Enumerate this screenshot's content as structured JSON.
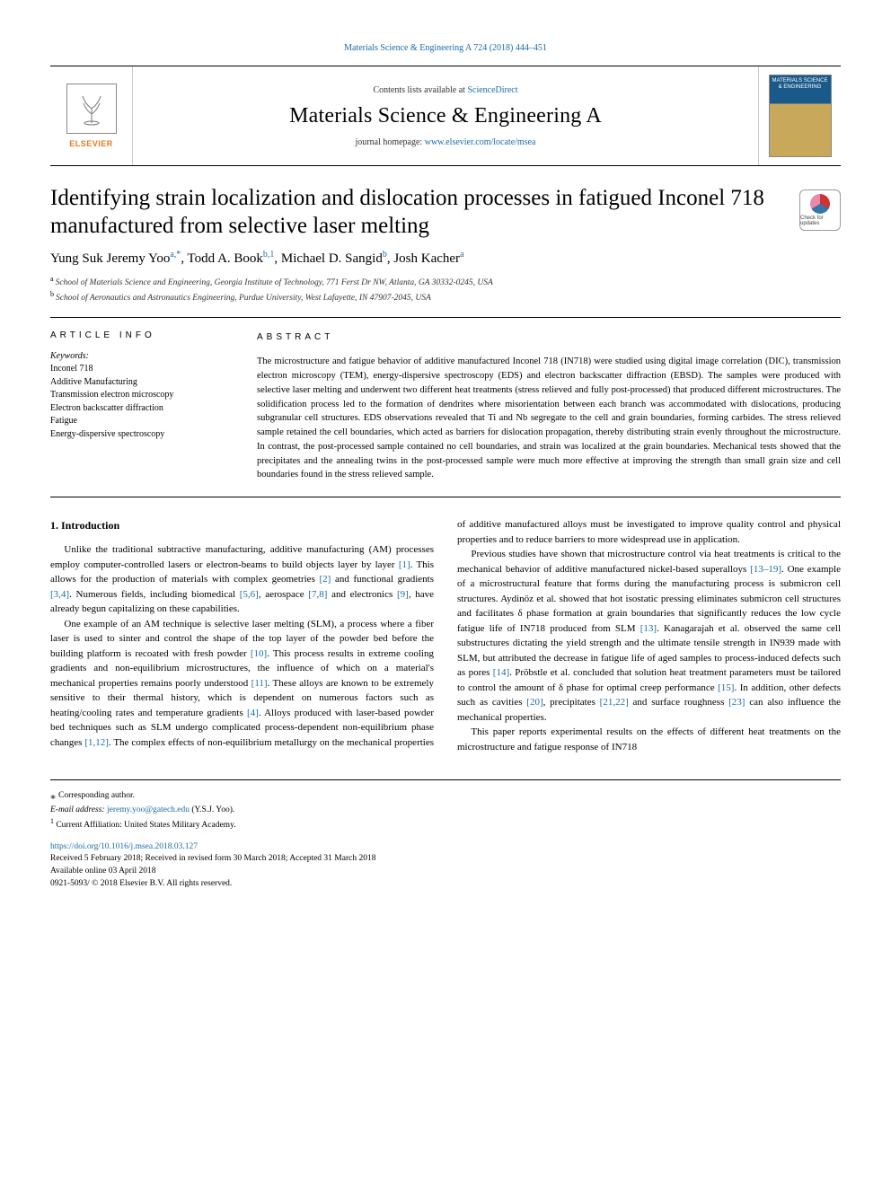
{
  "header": {
    "citation": "Materials Science & Engineering A 724 (2018) 444–451",
    "contents_prefix": "Contents lists available at ",
    "contents_link": "ScienceDirect",
    "journal_title": "Materials Science & Engineering A",
    "homepage_prefix": "journal homepage: ",
    "homepage_url": "www.elsevier.com/locate/msea",
    "publisher_name": "ELSEVIER",
    "cover_text": "MATERIALS SCIENCE & ENGINEERING",
    "check_updates_label": "Check for updates"
  },
  "article": {
    "title": "Identifying strain localization and dislocation processes in fatigued Inconel 718 manufactured from selective laser melting",
    "authors_html": "Yung Suk Jeremy Yoo<sup class='sup'>a,*</sup>, Todd A. Book<sup class='sup'>b,1</sup>, Michael D. Sangid<sup class='sup'>b</sup>, Josh Kacher<sup class='sup'>a</sup>",
    "affiliations": [
      {
        "label": "a",
        "text": "School of Materials Science and Engineering, Georgia Institute of Technology, 771 Ferst Dr NW, Atlanta, GA 30332-0245, USA"
      },
      {
        "label": "b",
        "text": "School of Aeronautics and Astronautics Engineering, Purdue University, West Lafayette, IN 47907-2045, USA"
      }
    ]
  },
  "info": {
    "label": "ARTICLE INFO",
    "keywords_head": "Keywords:",
    "keywords": [
      "Inconel 718",
      "Additive Manufacturing",
      "Transmission electron microscopy",
      "Electron backscatter diffraction",
      "Fatigue",
      "Energy-dispersive spectroscopy"
    ]
  },
  "abstract": {
    "label": "ABSTRACT",
    "text": "The microstructure and fatigue behavior of additive manufactured Inconel 718 (IN718) were studied using digital image correlation (DIC), transmission electron microscopy (TEM), energy-dispersive spectroscopy (EDS) and electron backscatter diffraction (EBSD). The samples were produced with selective laser melting and underwent two different heat treatments (stress relieved and fully post-processed) that produced different microstructures. The solidification process led to the formation of dendrites where misorientation between each branch was accommodated with dislocations, producing subgranular cell structures. EDS observations revealed that Ti and Nb segregate to the cell and grain boundaries, forming carbides. The stress relieved sample retained the cell boundaries, which acted as barriers for dislocation propagation, thereby distributing strain evenly throughout the microstructure. In contrast, the post-processed sample contained no cell boundaries, and strain was localized at the grain boundaries. Mechanical tests showed that the precipitates and the annealing twins in the post-processed sample were much more effective at improving the strength than small grain size and cell boundaries found in the stress relieved sample."
  },
  "body": {
    "heading": "1. Introduction",
    "paragraphs_html": [
      "Unlike the traditional subtractive manufacturing, additive manufacturing (AM) processes employ computer-controlled lasers or electron-beams to build objects layer by layer <span class='ref'>[1]</span>. This allows for the production of materials with complex geometries <span class='ref'>[2]</span> and functional gradients <span class='ref'>[3,4]</span>. Numerous fields, including biomedical <span class='ref'>[5,6]</span>, aerospace <span class='ref'>[7,8]</span> and electronics <span class='ref'>[9]</span>, have already begun capitalizing on these capabilities.",
      "One example of an AM technique is selective laser melting (SLM), a process where a fiber laser is used to sinter and control the shape of the top layer of the powder bed before the building platform is recoated with fresh powder <span class='ref'>[10]</span>. This process results in extreme cooling gradients and non-equilibrium microstructures, the influence of which on a material's mechanical properties remains poorly understood <span class='ref'>[11]</span>. These alloys are known to be extremely sensitive to their thermal history, which is dependent on numerous factors such as heating/cooling rates and temperature gradients <span class='ref'>[4]</span>. Alloys produced with laser-based powder bed techniques such as SLM undergo complicated process-dependent non-equilibrium phase changes <span class='ref'>[1,12]</span>. The complex effects of non-equilibrium metallurgy on the mechanical properties of additive manufactured alloys must be investigated to improve quality control and physical properties and to reduce barriers to more widespread use in application.",
      "Previous studies have shown that microstructure control via heat treatments is critical to the mechanical behavior of additive manufactured nickel-based superalloys <span class='ref'>[13–19]</span>. One example of a microstructural feature that forms during the manufacturing process is submicron cell structures. Aydinöz et al. showed that hot isostatic pressing eliminates submicron cell structures and facilitates δ phase formation at grain boundaries that significantly reduces the low cycle fatigue life of IN718 produced from SLM <span class='ref'>[13]</span>. Kanagarajah et al. observed the same cell substructures dictating the yield strength and the ultimate tensile strength in IN939 made with SLM, but attributed the decrease in fatigue life of aged samples to process-induced defects such as pores <span class='ref'>[14]</span>. Pröbstle et al. concluded that solution heat treatment parameters must be tailored to control the amount of δ phase for optimal creep performance <span class='ref'>[15]</span>. In addition, other defects such as cavities <span class='ref'>[20]</span>, precipitates <span class='ref'>[21,22]</span> and surface roughness <span class='ref'>[23]</span> can also influence the mechanical properties.",
      "This paper reports experimental results on the effects of different heat treatments on the microstructure and fatigue response of IN718"
    ]
  },
  "footer": {
    "corr": "Corresponding author.",
    "email_label": "E-mail address: ",
    "email": "jeremy.yoo@gatech.edu",
    "email_paren": " (Y.S.J. Yoo).",
    "note1": "Current Affiliation: United States Military Academy.",
    "doi": "https://doi.org/10.1016/j.msea.2018.03.127",
    "received": "Received 5 February 2018; Received in revised form 30 March 2018; Accepted 31 March 2018",
    "available": "Available online 03 April 2018",
    "copyright": "0921-5093/ © 2018 Elsevier B.V. All rights reserved."
  },
  "colors": {
    "link": "#1a6ba8",
    "publisher_orange": "#e67a1a",
    "text": "#000000",
    "rule": "#000000"
  }
}
